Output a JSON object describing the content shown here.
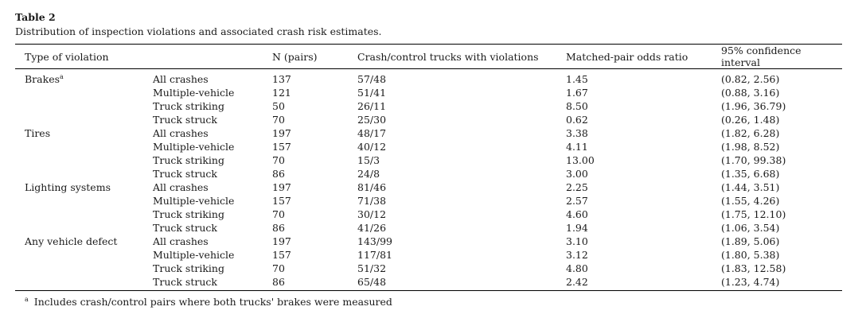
{
  "table": {
    "title": "Table 2",
    "caption": "Distribution of inspection violations and associated crash risk estimates.",
    "headers": [
      "Type of violation",
      "",
      "N (pairs)",
      "Crash/control trucks with violations",
      "Matched-pair odds ratio",
      "95% confidence interval"
    ],
    "groups": [
      {
        "label": "Brakes",
        "note_mark": "a",
        "rows": [
          [
            "All crashes",
            "137",
            "57/48",
            "1.45",
            "(0.82, 2.56)"
          ],
          [
            "Multiple-vehicle",
            "121",
            "51/41",
            "1.67",
            "(0.88, 3.16)"
          ],
          [
            "Truck striking",
            "50",
            "26/11",
            "8.50",
            "(1.96, 36.79)"
          ],
          [
            "Truck struck",
            "70",
            "25/30",
            "0.62",
            "(0.26, 1.48)"
          ]
        ]
      },
      {
        "label": "Tires",
        "note_mark": "",
        "rows": [
          [
            "All crashes",
            "197",
            "48/17",
            "3.38",
            "(1.82, 6.28)"
          ],
          [
            "Multiple-vehicle",
            "157",
            "40/12",
            "4.11",
            "(1.98, 8.52)"
          ],
          [
            "Truck striking",
            "70",
            "15/3",
            "13.00",
            "(1.70, 99.38)"
          ],
          [
            "Truck struck",
            "86",
            "24/8",
            "3.00",
            "(1.35, 6.68)"
          ]
        ]
      },
      {
        "label": "Lighting systems",
        "note_mark": "",
        "rows": [
          [
            "All crashes",
            "197",
            "81/46",
            "2.25",
            "(1.44, 3.51)"
          ],
          [
            "Multiple-vehicle",
            "157",
            "71/38",
            "2.57",
            "(1.55, 4.26)"
          ],
          [
            "Truck striking",
            "70",
            "30/12",
            "4.60",
            "(1.75, 12.10)"
          ],
          [
            "Truck struck",
            "86",
            "41/26",
            "1.94",
            "(1.06, 3.54)"
          ]
        ]
      },
      {
        "label": "Any vehicle defect",
        "note_mark": "",
        "rows": [
          [
            "All crashes",
            "197",
            "143/99",
            "3.10",
            "(1.89, 5.06)"
          ],
          [
            "Multiple-vehicle",
            "157",
            "117/81",
            "3.12",
            "(1.80, 5.38)"
          ],
          [
            "Truck striking",
            "70",
            "51/32",
            "4.80",
            "(1.83, 12.58)"
          ],
          [
            "Truck struck",
            "86",
            "65/48",
            "2.42",
            "(1.23, 4.74)"
          ]
        ]
      }
    ],
    "footnote": {
      "mark": "a",
      "text": "Includes crash/control pairs where both trucks' brakes were measured"
    }
  }
}
